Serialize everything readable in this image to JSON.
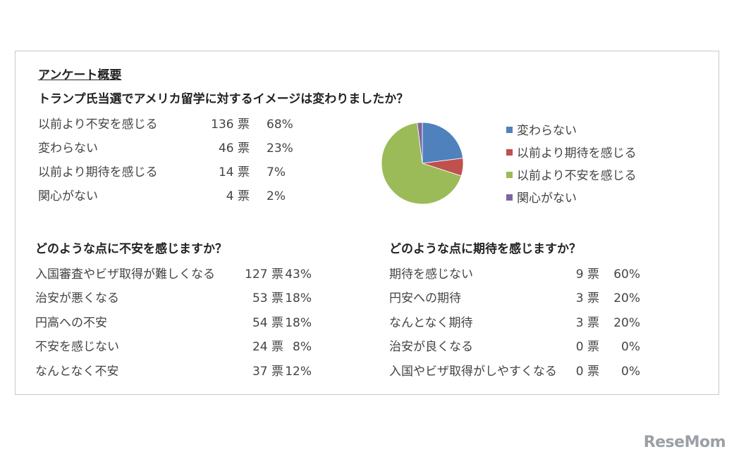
{
  "survey_title": "アンケート概要",
  "chart_data": {
    "type": "pie",
    "title": "トランプ氏当選でアメリカ留学に対するイメージは変わりましたか？",
    "rows": [
      {
        "label": "以前より不安を感じる",
        "votes": "136 票",
        "pct": "68%"
      },
      {
        "label": "変わらない",
        "votes": "46 票",
        "pct": "23%"
      },
      {
        "label": "以前より期待を感じる",
        "votes": "14 票",
        "pct": "7%"
      },
      {
        "label": "関心がない",
        "votes": "4 票",
        "pct": "2%"
      }
    ],
    "slices": [
      {
        "name": "変わらない",
        "value": 23,
        "color": "#4f81bd"
      },
      {
        "name": "以前より期待を感じる",
        "value": 7,
        "color": "#c0504d"
      },
      {
        "name": "以前より不安を感じる",
        "value": 68,
        "color": "#9bbb59"
      },
      {
        "name": "関心がない",
        "value": 2,
        "color": "#8064a2"
      }
    ],
    "legend_position": "right"
  },
  "anxiety": {
    "title": "どのような点に不安を感じますか？",
    "rows": [
      {
        "label": "入国審査やビザ取得が難しくなる",
        "votes": "127 票",
        "pct": "43%"
      },
      {
        "label": "治安が悪くなる",
        "votes": "53 票",
        "pct": "18%"
      },
      {
        "label": "円高への不安",
        "votes": "54 票",
        "pct": "18%"
      },
      {
        "label": "不安を感じない",
        "votes": "24 票",
        "pct": "8%"
      },
      {
        "label": "なんとなく不安",
        "votes": "37 票",
        "pct": "12%"
      }
    ]
  },
  "expectation": {
    "title": "どのような点に期待を感じますか？",
    "rows": [
      {
        "label": "期待を感じない",
        "votes": "9 票",
        "pct": "60%"
      },
      {
        "label": "円安への期待",
        "votes": "3 票",
        "pct": "20%"
      },
      {
        "label": "なんとなく期待",
        "votes": "3 票",
        "pct": "20%"
      },
      {
        "label": "治安が良くなる",
        "votes": "0 票",
        "pct": "0%"
      },
      {
        "label": "入国やビザ取得がしやすくなる",
        "votes": "0 票",
        "pct": "0%"
      }
    ]
  },
  "watermark": "ReseMom"
}
